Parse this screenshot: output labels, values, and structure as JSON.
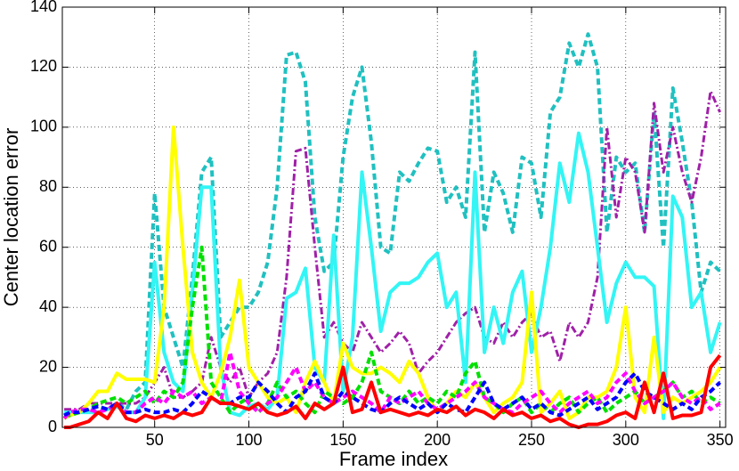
{
  "chart_data": {
    "type": "line",
    "xlabel": "Frame index",
    "ylabel": "Center location error",
    "xlim": [
      1,
      353
    ],
    "ylim": [
      0,
      140
    ],
    "xticks": [
      50,
      100,
      150,
      200,
      250,
      300,
      350
    ],
    "yticks": [
      0,
      20,
      40,
      60,
      80,
      100,
      120,
      140
    ],
    "grid": true,
    "x": [
      2,
      5,
      10,
      15,
      20,
      25,
      30,
      35,
      40,
      45,
      50,
      55,
      60,
      65,
      70,
      75,
      80,
      85,
      90,
      95,
      100,
      105,
      110,
      115,
      120,
      125,
      130,
      135,
      140,
      145,
      150,
      155,
      160,
      165,
      170,
      175,
      180,
      185,
      190,
      195,
      200,
      205,
      210,
      215,
      220,
      225,
      230,
      235,
      240,
      245,
      250,
      255,
      260,
      265,
      270,
      275,
      280,
      285,
      290,
      295,
      300,
      305,
      310,
      315,
      320,
      325,
      330,
      335,
      340,
      345,
      350
    ],
    "series": [
      {
        "color": "#20c0c0",
        "style": "dashed",
        "values": [
          3,
          4,
          5,
          6,
          7,
          6,
          8,
          6,
          12,
          15,
          78,
          40,
          30,
          20,
          50,
          85,
          90,
          30,
          35,
          40,
          40,
          45,
          55,
          80,
          124,
          125,
          115,
          70,
          52,
          55,
          90,
          110,
          120,
          95,
          60,
          58,
          85,
          82,
          88,
          93,
          92,
          75,
          80,
          70,
          125,
          65,
          85,
          78,
          65,
          90,
          88,
          70,
          105,
          110,
          128,
          120,
          131,
          120,
          65,
          90,
          85,
          88,
          65,
          105,
          60,
          113,
          95,
          75,
          45,
          55,
          52
        ]
      },
      {
        "color": "#a020a8",
        "style": "dashdot",
        "values": [
          6,
          6,
          6,
          8,
          8,
          8,
          8,
          8,
          8,
          10,
          15,
          20,
          10,
          10,
          12,
          15,
          30,
          20,
          15,
          20,
          10,
          15,
          18,
          25,
          50,
          92,
          93,
          60,
          30,
          35,
          28,
          25,
          35,
          30,
          25,
          28,
          32,
          28,
          18,
          22,
          25,
          30,
          35,
          38,
          40,
          30,
          28,
          35,
          30,
          35,
          38,
          30,
          32,
          22,
          35,
          30,
          35,
          50,
          100,
          70,
          90,
          85,
          65,
          108,
          85,
          100,
          85,
          75,
          90,
          112,
          105
        ]
      },
      {
        "color": "#33f5f5",
        "style": "solid",
        "values": [
          5,
          5,
          5,
          5,
          5,
          6,
          7,
          5,
          5,
          10,
          55,
          25,
          15,
          12,
          45,
          80,
          80,
          20,
          5,
          4,
          7,
          8,
          6,
          10,
          43,
          45,
          53,
          20,
          15,
          64,
          12,
          30,
          85,
          60,
          32,
          45,
          48,
          48,
          50,
          55,
          58,
          40,
          45,
          15,
          85,
          25,
          40,
          28,
          45,
          52,
          25,
          40,
          60,
          88,
          75,
          98,
          85,
          60,
          35,
          48,
          55,
          50,
          50,
          47,
          3,
          77,
          70,
          40,
          45,
          25,
          35
        ]
      },
      {
        "color": "#ffff00",
        "style": "solid",
        "values": [
          3,
          4,
          5,
          8,
          12,
          12,
          18,
          16,
          16,
          16,
          15,
          40,
          100,
          60,
          25,
          15,
          10,
          18,
          30,
          49,
          20,
          15,
          10,
          8,
          10,
          5,
          15,
          22,
          15,
          8,
          28,
          20,
          18,
          18,
          20,
          18,
          15,
          22,
          18,
          10,
          5,
          8,
          12,
          10,
          15,
          10,
          5,
          8,
          10,
          15,
          45,
          5,
          8,
          12,
          3,
          5,
          10,
          10,
          12,
          20,
          40,
          10,
          5,
          30,
          5,
          10,
          8,
          10,
          12,
          15,
          20
        ]
      },
      {
        "color": "#00e000",
        "style": "dashed",
        "values": [
          4,
          4,
          5,
          6,
          8,
          9,
          10,
          8,
          10,
          12,
          8,
          12,
          10,
          15,
          40,
          60,
          15,
          10,
          5,
          8,
          10,
          5,
          8,
          15,
          10,
          12,
          8,
          5,
          12,
          10,
          8,
          10,
          15,
          25,
          12,
          10,
          8,
          12,
          8,
          10,
          8,
          12,
          10,
          18,
          22,
          10,
          8,
          5,
          8,
          10,
          5,
          8,
          5,
          8,
          10,
          5,
          8,
          10,
          5,
          8,
          10,
          12,
          8,
          10,
          12,
          15,
          10,
          12,
          8,
          10,
          8
        ]
      },
      {
        "color": "#ff00ff",
        "style": "dashed",
        "values": [
          3,
          5,
          6,
          6,
          5,
          6,
          8,
          5,
          5,
          8,
          10,
          8,
          12,
          10,
          12,
          8,
          10,
          8,
          25,
          12,
          8,
          5,
          8,
          10,
          15,
          20,
          12,
          15,
          10,
          8,
          10,
          12,
          10,
          8,
          5,
          10,
          8,
          10,
          12,
          8,
          6,
          8,
          10,
          12,
          15,
          10,
          8,
          6,
          5,
          8,
          10,
          12,
          8,
          5,
          8,
          10,
          12,
          8,
          10,
          15,
          18,
          12,
          8,
          10,
          12,
          15,
          10,
          8,
          10,
          6,
          8
        ]
      },
      {
        "color": "#0000ff",
        "style": "dashed",
        "values": [
          4,
          5,
          5,
          6,
          7,
          6,
          8,
          5,
          5,
          6,
          5,
          5,
          6,
          5,
          8,
          12,
          10,
          8,
          8,
          10,
          10,
          15,
          12,
          8,
          5,
          10,
          12,
          18,
          10,
          8,
          12,
          10,
          8,
          6,
          5,
          8,
          10,
          8,
          6,
          8,
          5,
          8,
          6,
          5,
          10,
          15,
          8,
          6,
          8,
          10,
          6,
          8,
          5,
          4,
          6,
          8,
          10,
          6,
          8,
          10,
          15,
          18,
          12,
          10,
          8,
          6,
          8,
          6,
          10,
          12,
          15
        ]
      },
      {
        "color": "#ff0000",
        "style": "solid",
        "values": [
          0,
          0,
          1,
          2,
          5,
          3,
          8,
          3,
          2,
          4,
          3,
          4,
          3,
          5,
          4,
          5,
          10,
          8,
          8,
          7,
          6,
          8,
          5,
          4,
          5,
          7,
          3,
          8,
          6,
          8,
          20,
          5,
          6,
          15,
          5,
          6,
          5,
          4,
          5,
          4,
          6,
          5,
          7,
          4,
          6,
          5,
          3,
          6,
          4,
          5,
          3,
          4,
          2,
          3,
          1,
          0,
          1,
          1,
          2,
          4,
          5,
          3,
          15,
          5,
          18,
          3,
          4,
          4,
          5,
          20,
          24
        ]
      }
    ]
  }
}
